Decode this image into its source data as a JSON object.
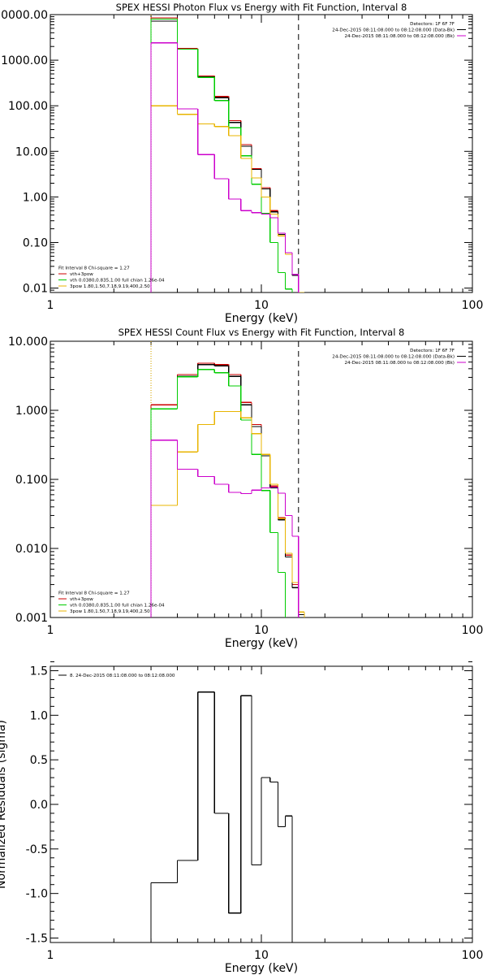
{
  "chart_data": [
    {
      "type": "line",
      "title": "SPEX HESSI Photon Flux vs Energy with Fit Function, Interval 8",
      "xlabel": "Energy (keV)",
      "ylabel": "",
      "xscale": "log",
      "yscale": "log",
      "xlim": [
        1,
        100
      ],
      "ylim": [
        0.008,
        10000
      ],
      "xticks": [
        {
          "value": 1,
          "label": "1"
        },
        {
          "value": 10,
          "label": "10"
        },
        {
          "value": 100,
          "label": "100"
        }
      ],
      "yticks": [
        {
          "value": 0.01,
          "label": "0.01"
        },
        {
          "value": 0.1,
          "label": "0.10"
        },
        {
          "value": 1,
          "label": "1.00"
        },
        {
          "value": 10,
          "label": "10.00"
        },
        {
          "value": 100,
          "label": "100.00"
        },
        {
          "value": 1000,
          "label": "1000.00"
        },
        {
          "value": 10000,
          "label": "10000.00"
        }
      ],
      "vlines": [
        {
          "x": 3,
          "style": "dotted",
          "color": "#000000"
        },
        {
          "x": 3,
          "style": "dotted",
          "color": "#e8b400"
        },
        {
          "x": 15,
          "style": "dashed",
          "color": "#000000"
        }
      ],
      "legend_top": {
        "position": "top-right",
        "lines": [
          {
            "text": "Detectors: 1F 6F 7F",
            "color": ""
          },
          {
            "text": "24-Dec-2015 08:11:08.000 to 08:12:08.000 (Data-Bk)",
            "color": "#000000"
          },
          {
            "text": "24-Dec-2015 08:11:08.000 to 08:12:08.000 (Bk)",
            "color": "#cc00cc"
          }
        ]
      },
      "legend_bottom": {
        "position": "bottom-left",
        "lines": [
          {
            "text": "Fit Interval 8   Chi-square = 1.27",
            "color": ""
          },
          {
            "text": "vth+3pow",
            "color": "#cc0000"
          },
          {
            "text": "vth 0.0380,0.835,1.00  full chian 1.26e-04",
            "color": "#00cc00"
          },
          {
            "text": "3pow 1.80,1.50,7.18,9.19,400,2.50",
            "color": "#e8b400"
          }
        ]
      },
      "edges": [
        3,
        4,
        5,
        6,
        7,
        8,
        9,
        10,
        11,
        12,
        13,
        14,
        15,
        16,
        17,
        18
      ],
      "series": [
        {
          "name": "vth+3pow",
          "color": "#cc0000",
          "values": [
            8500,
            1800,
            450,
            160,
            47,
            14,
            4.2,
            1.6,
            0.5,
            0.16,
            0.06,
            0.02,
            null,
            null,
            null
          ]
        },
        {
          "name": "",
          "color": "#000000",
          "values": [
            7200,
            1750,
            430,
            150,
            43,
            13,
            4.0,
            1.5,
            0.47,
            0.15,
            0.055,
            0.019,
            null,
            null,
            null
          ]
        },
        {
          "name": "vth 0.0380,0.835,1.00  full chian 1.26e-04",
          "color": "#00cc00",
          "values": [
            8000,
            1750,
            420,
            130,
            33,
            8.0,
            1.9,
            0.44,
            0.1,
            0.022,
            0.0095,
            null,
            null,
            null,
            null
          ]
        },
        {
          "name": "3pow 1.80,1.50,7.18,9.19,400,2.50",
          "color": "#e8b400",
          "values": [
            100,
            65,
            40,
            35,
            22,
            7.0,
            2.6,
            1.0,
            0.42,
            0.14,
            0.055,
            0.02,
            0.008,
            null,
            null
          ]
        },
        {
          "name": "",
          "color": "#cc00cc",
          "values": [
            2400,
            85,
            8.5,
            2.5,
            0.9,
            0.5,
            0.45,
            0.42,
            0.35,
            0.16,
            0.06,
            0.02,
            null,
            null,
            null
          ]
        }
      ]
    },
    {
      "type": "line",
      "title": "SPEX HESSI Count Flux vs Energy with Fit Function, Interval 8",
      "xlabel": "Energy (keV)",
      "ylabel": "",
      "xscale": "log",
      "yscale": "log",
      "xlim": [
        1,
        100
      ],
      "ylim": [
        0.001,
        10
      ],
      "xticks": [
        {
          "value": 1,
          "label": "1"
        },
        {
          "value": 10,
          "label": "10"
        },
        {
          "value": 100,
          "label": "100"
        }
      ],
      "yticks": [
        {
          "value": 0.001,
          "label": "0.001"
        },
        {
          "value": 0.01,
          "label": "0.010"
        },
        {
          "value": 0.1,
          "label": "0.100"
        },
        {
          "value": 1,
          "label": "1.000"
        },
        {
          "value": 10,
          "label": "10.000"
        }
      ],
      "vlines": [
        {
          "x": 3,
          "style": "dotted",
          "color": "#000000"
        },
        {
          "x": 3,
          "style": "dotted",
          "color": "#e8b400"
        },
        {
          "x": 15,
          "style": "dashed",
          "color": "#000000"
        }
      ],
      "legend_top": {
        "position": "top-right",
        "lines": [
          {
            "text": "Detectors: 1F 6F 7F",
            "color": ""
          },
          {
            "text": "24-Dec-2015 08:11:08.000 to 08:12:08.000 (Data-Bk)",
            "color": "#000000"
          },
          {
            "text": "24-Dec-2015 08:11:08.000 to 08:12:08.000 (Bk)",
            "color": "#cc00cc"
          }
        ]
      },
      "legend_bottom": {
        "position": "bottom-left",
        "lines": [
          {
            "text": "Fit Interval 8   Chi-square = 1.27",
            "color": ""
          },
          {
            "text": "vth+3pow",
            "color": "#cc0000"
          },
          {
            "text": "vth 0.0380,0.835,1.00  full chian 1.26e-04",
            "color": "#00cc00"
          },
          {
            "text": "3pow 1.80,1.50,7.18,9.19,400,2.50",
            "color": "#e8b400"
          }
        ]
      },
      "edges": [
        3,
        4,
        5,
        6,
        7,
        8,
        9,
        10,
        11,
        12,
        13,
        14,
        15,
        16,
        17,
        18
      ],
      "series": [
        {
          "name": "vth+3pow",
          "color": "#cc0000",
          "values": [
            1.2,
            3.3,
            4.8,
            4.6,
            3.3,
            1.3,
            0.62,
            0.23,
            0.08,
            0.028,
            0.008,
            0.003,
            0.0012,
            null,
            null
          ]
        },
        {
          "name": "",
          "color": "#000000",
          "values": [
            1.05,
            3.1,
            4.6,
            4.4,
            3.1,
            1.2,
            0.58,
            0.22,
            0.075,
            0.026,
            0.0075,
            0.0027,
            0.0011,
            null,
            null
          ]
        },
        {
          "name": "vth 0.0380,0.835,1.00  full chian 1.26e-04",
          "color": "#00cc00",
          "values": [
            1.05,
            3.05,
            3.9,
            3.5,
            2.25,
            0.72,
            0.23,
            0.069,
            0.017,
            0.0045,
            null,
            null,
            null,
            null,
            null
          ]
        },
        {
          "name": "3pow 1.80,1.50,7.18,9.19,400,2.50",
          "color": "#e8b400",
          "values": [
            0.042,
            0.25,
            0.62,
            0.96,
            0.96,
            0.78,
            0.46,
            0.23,
            0.085,
            0.027,
            0.0085,
            0.0032,
            0.0012,
            null,
            null
          ]
        },
        {
          "name": "",
          "color": "#cc00cc",
          "values": [
            0.37,
            0.14,
            0.11,
            0.085,
            0.065,
            0.062,
            0.07,
            0.075,
            0.077,
            0.063,
            0.03,
            0.015,
            null,
            null,
            null
          ]
        }
      ]
    },
    {
      "type": "line",
      "title": "",
      "xlabel": "Energy (keV)",
      "ylabel": "Normalized Residuals (sigma)",
      "xscale": "log",
      "yscale": "linear",
      "xlim": [
        1,
        100
      ],
      "ylim": [
        -1.55,
        1.55
      ],
      "xticks": [
        {
          "value": 1,
          "label": "1"
        },
        {
          "value": 10,
          "label": "10"
        },
        {
          "value": 100,
          "label": "100"
        }
      ],
      "yticks": [
        {
          "value": -1.5,
          "label": "-1.5"
        },
        {
          "value": -1.0,
          "label": "-1.0"
        },
        {
          "value": -0.5,
          "label": "-0.5"
        },
        {
          "value": 0.0,
          "label": "0.0"
        },
        {
          "value": 0.5,
          "label": "0.5"
        },
        {
          "value": 1.0,
          "label": "1.0"
        },
        {
          "value": 1.5,
          "label": "1.5"
        }
      ],
      "vlines": [],
      "legend_top": {
        "position": "top-left",
        "lines": [
          {
            "text": "8. 24-Dec-2015 08:11:08.000 to 08:12:08.000",
            "color": "#000000"
          }
        ]
      },
      "legend_bottom": {
        "position": "",
        "lines": []
      },
      "edges": [
        3,
        4,
        5,
        6,
        7,
        8,
        9,
        10,
        11,
        12,
        13,
        14,
        15
      ],
      "series": [
        {
          "name": "8. 24-Dec-2015 08:11:08.000 to 08:12:08.000",
          "color": "#000000",
          "values": [
            -0.88,
            -0.63,
            1.26,
            -0.1,
            -1.22,
            1.22,
            -0.68,
            0.3,
            0.25,
            -0.25,
            -0.13
          ],
          "extend_to_bottom": true
        }
      ]
    }
  ]
}
